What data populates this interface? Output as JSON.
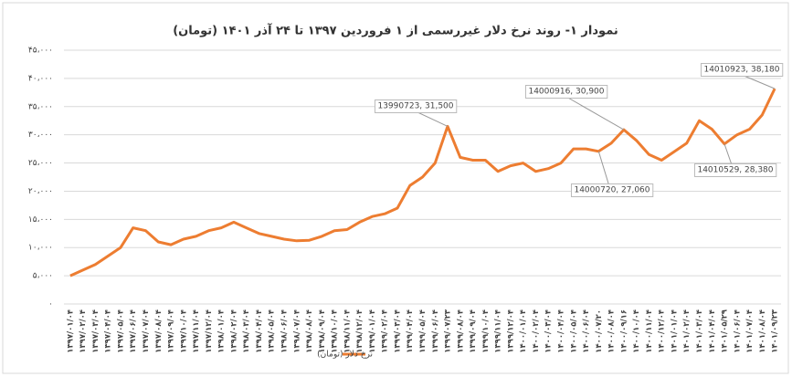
{
  "chart_data": {
    "type": "line",
    "title": "نمودار ۱- روند نرخ دلار غیررسمی از ۱ فروردین ۱۳۹۷ تا ۲۴ آذر ۱۴۰۱ (تومان)",
    "categories": [
      "۱۳۹۷/۰۱/۰۴",
      "۱۳۹۷/۰۲/۰۴",
      "۱۳۹۷/۰۳/۰۴",
      "۱۳۹۷/۰۴/۰۴",
      "۱۳۹۷/۰۵/۰۴",
      "۱۳۹۷/۰۶/۰۴",
      "۱۳۹۷/۰۷/۰۴",
      "۱۳۹۷/۰۸/۰۴",
      "۱۳۹۷/۰۹/۰۴",
      "۱۳۹۷/۱۰/۰۴",
      "۱۳۹۷/۱۱/۰۴",
      "۱۳۹۷/۱۲/۰۴",
      "۱۳۹۸/۰۱/۰۴",
      "۱۳۹۸/۰۲/۰۴",
      "۱۳۹۸/۰۳/۰۴",
      "۱۳۹۸/۰۴/۰۴",
      "۱۳۹۸/۰۵/۰۴",
      "۱۳۹۸/۰۶/۰۴",
      "۱۳۹۸/۰۷/۰۴",
      "۱۳۹۸/۰۸/۰۴",
      "۱۳۹۸/۰۹/۰۴",
      "۱۳۹۸/۱۰/۰۴",
      "۱۳۹۸/۱۱/۰۴",
      "۱۳۹۸/۱۲/۰۴",
      "۱۳۹۹/۰۱/۰۴",
      "۱۳۹۹/۰۲/۰۴",
      "۱۳۹۹/۰۳/۰۴",
      "۱۳۹۹/۰۴/۰۴",
      "۱۳۹۹/۰۵/۰۴",
      "۱۳۹۹/۰۶/۰۴",
      "۱۳۹۹/۰۷/۲۳",
      "۱۳۹۹/۰۸/۰۴",
      "۱۳۹۹/۰۹/۰۴",
      "۱۳۹۹/۱۰/۰۴",
      "۱۳۹۹/۱۱/۰۴",
      "۱۳۹۹/۱۲/۰۴",
      "۱۴۰۰/۰۱/۰۴",
      "۱۴۰۰/۰۲/۰۴",
      "۱۴۰۰/۰۳/۰۴",
      "۱۴۰۰/۰۴/۰۴",
      "۱۴۰۰/۰۵/۰۴",
      "۱۴۰۰/۰۶/۰۴",
      "۱۴۰۰/۰۷/۲۰",
      "۱۴۰۰/۰۸/۰۴",
      "۱۴۰۰/۰۹/۱۶",
      "۱۴۰۰/۱۰/۰۴",
      "۱۴۰۰/۱۱/۰۴",
      "۱۴۰۰/۱۲/۰۴",
      "۱۴۰۱/۰۱/۰۴",
      "۱۴۰۱/۰۲/۰۴",
      "۱۴۰۱/۰۳/۰۴",
      "۱۴۰۱/۰۴/۰۴",
      "۱۴۰۱/۰۵/۲۹",
      "۱۴۰۱/۰۶/۰۴",
      "۱۴۰۱/۰۷/۰۴",
      "۱۴۰۱/۰۸/۰۴",
      "۱۴۰۱/۰۹/۲۳"
    ],
    "series": [
      {
        "name": "نرخ دلار (تومان)",
        "color": "#ed7d31",
        "values": [
          5000,
          6000,
          7000,
          8500,
          10000,
          13500,
          13000,
          11000,
          10500,
          11500,
          12000,
          13000,
          13500,
          14500,
          13500,
          12500,
          12000,
          11500,
          11200,
          11300,
          12000,
          13000,
          13200,
          14500,
          15500,
          16000,
          17000,
          21000,
          22500,
          25000,
          31500,
          26000,
          25500,
          25500,
          23500,
          24500,
          25000,
          23500,
          24000,
          25000,
          27500,
          27500,
          27060,
          28500,
          30900,
          29000,
          26500,
          25500,
          27000,
          28500,
          32500,
          31000,
          28380,
          30000,
          31000,
          33500,
          38180
        ]
      }
    ],
    "ylim": [
      0,
      45000
    ],
    "yticks": [
      {
        "value": 0,
        "label": "۰"
      },
      {
        "value": 5000,
        "label": "۵،۰۰۰"
      },
      {
        "value": 10000,
        "label": "۱۰،۰۰۰"
      },
      {
        "value": 15000,
        "label": "۱۵،۰۰۰"
      },
      {
        "value": 20000,
        "label": "۲۰،۰۰۰"
      },
      {
        "value": 25000,
        "label": "۲۵،۰۰۰"
      },
      {
        "value": 30000,
        "label": "۳۰،۰۰۰"
      },
      {
        "value": 35000,
        "label": "۳۵،۰۰۰"
      },
      {
        "value": 40000,
        "label": "۴۰،۰۰۰"
      },
      {
        "value": 45000,
        "label": "۴۵،۰۰۰"
      }
    ],
    "grid": true,
    "annotations": [
      "13990723, 31,500",
      "14000916, 30,900",
      "14000720, 27,060",
      "14010529, 28,380",
      "14010923, 38,180"
    ]
  }
}
